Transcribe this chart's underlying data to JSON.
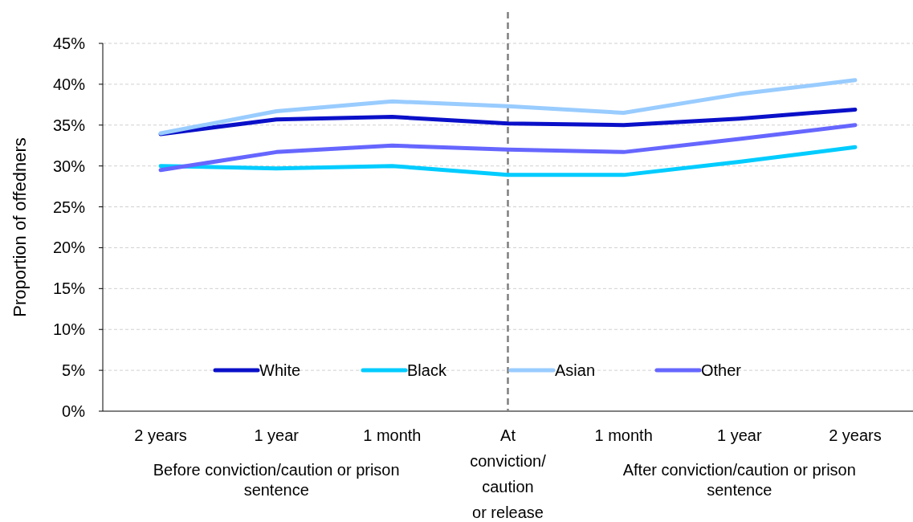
{
  "chart_data": {
    "type": "line",
    "ylabel": "Proportion of offedners",
    "categories": [
      "2 years",
      "1 year",
      "1 month",
      "At\nconviction/\ncaution\nor release",
      "1 month",
      "1 year",
      "2 years"
    ],
    "series": [
      {
        "name": "White",
        "color": "#0a10c8",
        "values": [
          33.9,
          35.7,
          36.0,
          35.2,
          35.0,
          35.8,
          36.9
        ]
      },
      {
        "name": "Black",
        "color": "#00ccff",
        "values": [
          30.0,
          29.7,
          30.0,
          28.9,
          28.9,
          30.5,
          32.3
        ]
      },
      {
        "name": "Asian",
        "color": "#99ccff",
        "values": [
          34.0,
          36.7,
          37.9,
          37.3,
          36.5,
          38.8,
          40.5
        ]
      },
      {
        "name": "Other",
        "color": "#6666ff",
        "values": [
          29.5,
          31.7,
          32.5,
          32.0,
          31.7,
          33.3,
          35.0
        ]
      }
    ],
    "ylim": [
      0,
      45
    ],
    "yticks": [
      {
        "value": 0,
        "label": "0%"
      },
      {
        "value": 5,
        "label": "5%"
      },
      {
        "value": 10,
        "label": "10%"
      },
      {
        "value": 15,
        "label": "15%"
      },
      {
        "value": 20,
        "label": "20%"
      },
      {
        "value": 25,
        "label": "25%"
      },
      {
        "value": 30,
        "label": "30%"
      },
      {
        "value": 35,
        "label": "35%"
      },
      {
        "value": 40,
        "label": "40%"
      },
      {
        "value": 45,
        "label": "45%"
      }
    ],
    "grid": "y",
    "legend": "bottom",
    "marker": "none",
    "line_style": "solid",
    "ref_lines": [
      {
        "axis": "x",
        "value": "At\nconviction/\ncaution\nor release",
        "color": "#7f7f7f",
        "line_style": "dashed"
      }
    ],
    "annotations": [
      "Before conviction/caution or prison sentence",
      "After conviction/caution or prison sentence"
    ]
  }
}
